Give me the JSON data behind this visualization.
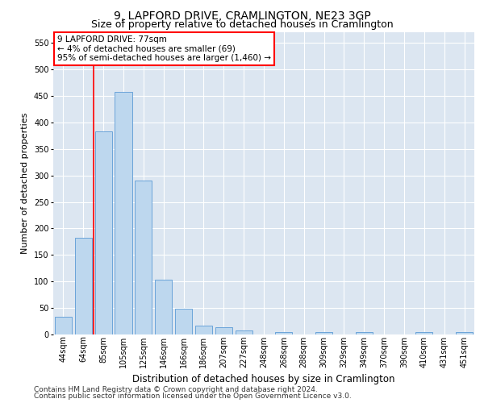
{
  "title": "9, LAPFORD DRIVE, CRAMLINGTON, NE23 3GP",
  "subtitle": "Size of property relative to detached houses in Cramlington",
  "xlabel": "Distribution of detached houses by size in Cramlington",
  "ylabel": "Number of detached properties",
  "footnote1": "Contains HM Land Registry data © Crown copyright and database right 2024.",
  "footnote2": "Contains public sector information licensed under the Open Government Licence v3.0.",
  "annotation_title": "9 LAPFORD DRIVE: 77sqm",
  "annotation_line1": "← 4% of detached houses are smaller (69)",
  "annotation_line2": "95% of semi-detached houses are larger (1,460) →",
  "bar_labels": [
    "44sqm",
    "64sqm",
    "85sqm",
    "105sqm",
    "125sqm",
    "146sqm",
    "166sqm",
    "186sqm",
    "207sqm",
    "227sqm",
    "248sqm",
    "268sqm",
    "288sqm",
    "309sqm",
    "329sqm",
    "349sqm",
    "370sqm",
    "390sqm",
    "410sqm",
    "431sqm",
    "451sqm"
  ],
  "bar_values": [
    33,
    183,
    383,
    458,
    290,
    103,
    48,
    17,
    13,
    8,
    0,
    5,
    0,
    5,
    0,
    5,
    0,
    0,
    5,
    0,
    5
  ],
  "bar_color": "#bdd7ee",
  "bar_edge_color": "#5b9bd5",
  "red_line_x": 1.5,
  "ylim": [
    0,
    570
  ],
  "yticks": [
    0,
    50,
    100,
    150,
    200,
    250,
    300,
    350,
    400,
    450,
    500,
    550
  ],
  "bg_color": "#ffffff",
  "plot_bg_color": "#dce6f1",
  "grid_color": "#ffffff",
  "annotation_box_color": "#ffffff",
  "annotation_box_edge_color": "#ff0000",
  "red_line_color": "#ff0000",
  "title_fontsize": 10,
  "subtitle_fontsize": 9,
  "xlabel_fontsize": 8.5,
  "ylabel_fontsize": 8,
  "tick_fontsize": 7,
  "annotation_fontsize": 7.5,
  "footnote_fontsize": 6.5
}
